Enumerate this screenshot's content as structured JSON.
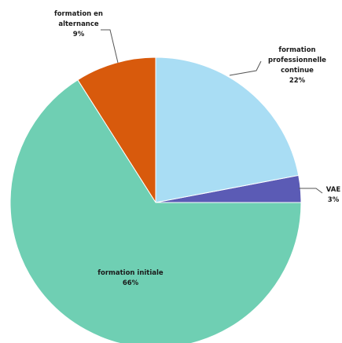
{
  "chart_data": {
    "type": "pie",
    "start_angle_deg": 0,
    "direction": "counterclockwise",
    "slices": [
      {
        "name": "VAE",
        "value": 3,
        "label_lines": [
          "VAE",
          "3%"
        ],
        "color": "#5B5BB5"
      },
      {
        "name": "formation professionnelle continue",
        "value": 22,
        "label_lines": [
          "formation",
          "professionnelle",
          "continue",
          "22%"
        ],
        "color": "#A9DDF4"
      },
      {
        "name": "formation en alternance",
        "value": 9,
        "label_lines": [
          "formation en",
          "alternance",
          "9%"
        ],
        "color": "#D85A0C"
      },
      {
        "name": "formation initiale",
        "value": 66,
        "label_lines": [
          "formation initiale",
          "66%"
        ],
        "color": "#6FCFB3"
      }
    ]
  }
}
